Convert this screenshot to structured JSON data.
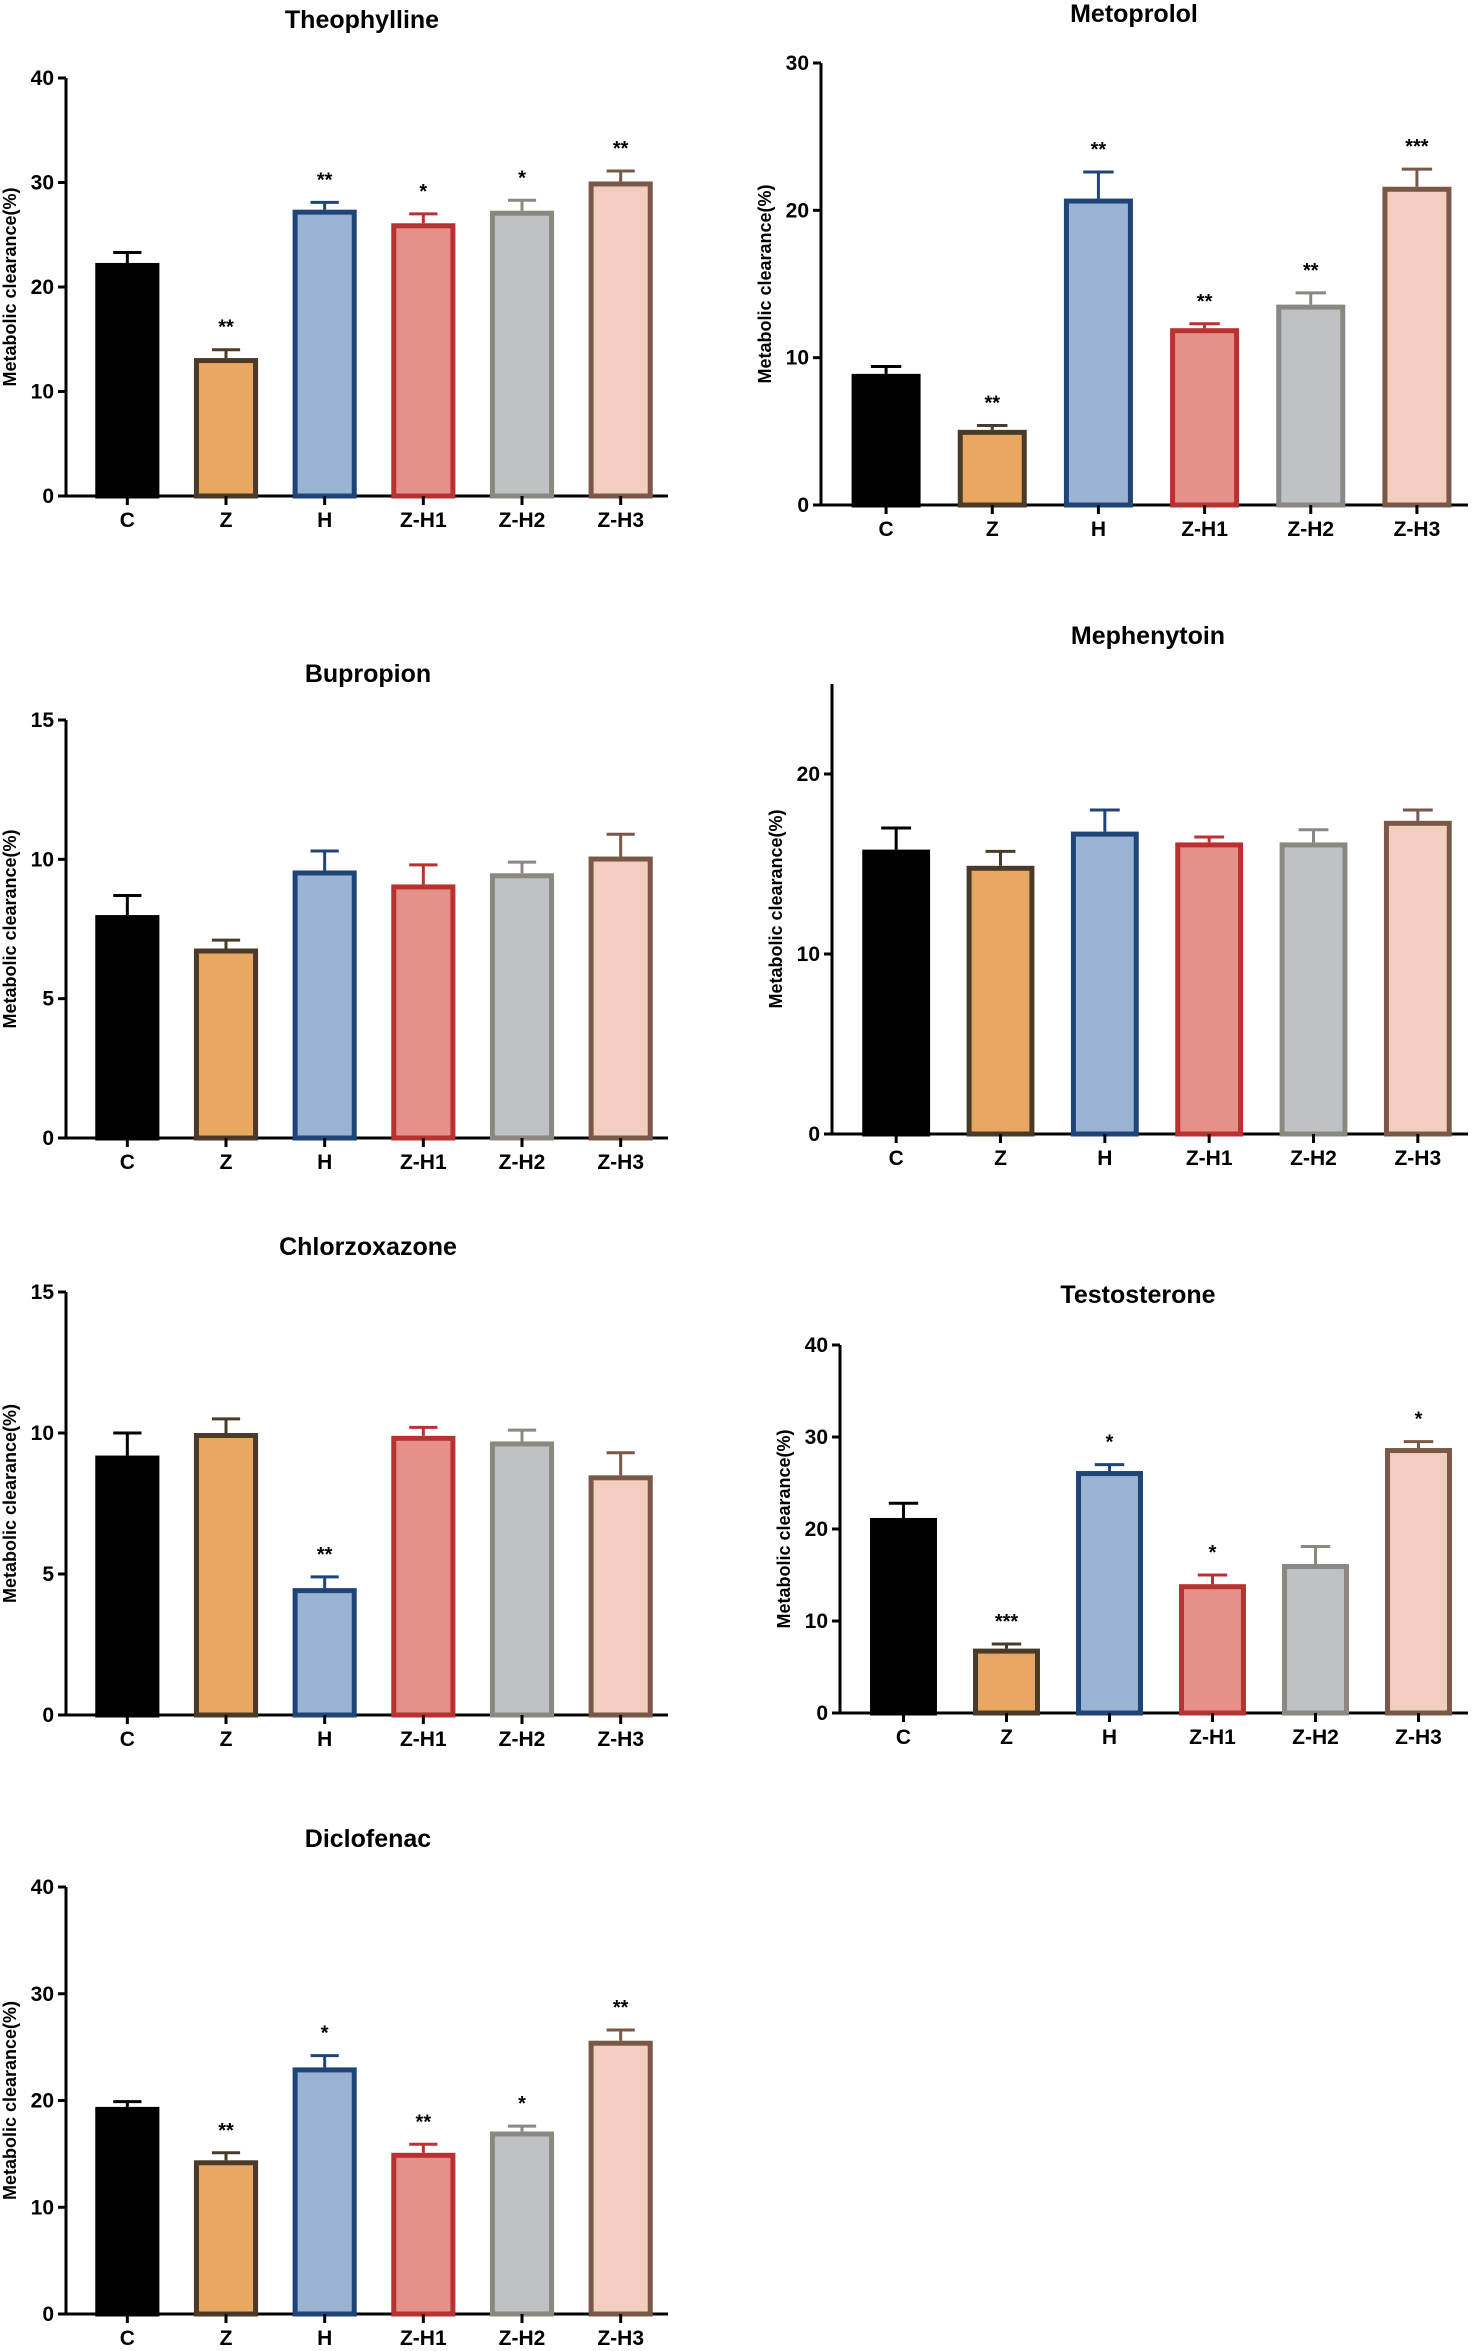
{
  "style": {
    "fills": [
      "#000000",
      "#e8a862",
      "#9bb3d3",
      "#e59089",
      "#bec2c4",
      "#f3cdbf"
    ],
    "strokes": [
      "#000000",
      "#4a3b28",
      "#1f4478",
      "#b83232",
      "#8a8880",
      "#7a5848"
    ]
  },
  "chart_data": [
    {
      "type": "bar",
      "title": "Theophylline",
      "ylabel": "Metabolic clearance(%)",
      "categories": [
        "C",
        "Z",
        "H",
        "Z-H1",
        "Z-H2",
        "Z-H3"
      ],
      "ylim": [
        0,
        40
      ],
      "yticks": [
        0,
        10,
        20,
        30,
        40
      ],
      "values": [
        22.3,
        13.2,
        27.4,
        26.1,
        27.3,
        30.1
      ],
      "errors": [
        1.0,
        0.8,
        0.7,
        0.9,
        1.0,
        1.0
      ],
      "significance": [
        "",
        "**",
        "**",
        "*",
        "*",
        "**"
      ]
    },
    {
      "type": "bar",
      "title": "Metoprolol",
      "ylabel": "Metabolic clearance(%)",
      "categories": [
        "C",
        "Z",
        "H",
        "Z-H1",
        "Z-H2",
        "Z-H3"
      ],
      "ylim": [
        0,
        30
      ],
      "yticks": [
        0,
        10,
        20,
        30
      ],
      "values": [
        8.9,
        5.1,
        20.8,
        12.0,
        13.6,
        21.6
      ],
      "errors": [
        0.5,
        0.3,
        1.8,
        0.3,
        0.8,
        1.2
      ],
      "significance": [
        "",
        "**",
        "**",
        "**",
        "**",
        "***"
      ]
    },
    {
      "type": "bar",
      "title": "Bupropion",
      "ylabel": "Metabolic clearance(%)",
      "categories": [
        "C",
        "Z",
        "H",
        "Z-H1",
        "Z-H2",
        "Z-H3"
      ],
      "ylim": [
        0,
        15
      ],
      "yticks": [
        0,
        5,
        10,
        15
      ],
      "values": [
        8.0,
        6.8,
        9.6,
        9.1,
        9.5,
        10.1
      ],
      "errors": [
        0.7,
        0.3,
        0.7,
        0.7,
        0.4,
        0.8
      ],
      "significance": [
        "",
        "",
        "",
        "",
        "",
        ""
      ]
    },
    {
      "type": "bar",
      "title": "Mephenytoin",
      "ylabel": "Metabolic clearance(%)",
      "categories": [
        "C",
        "Z",
        "H",
        "Z-H1",
        "Z-H2",
        "Z-H3"
      ],
      "ylim": [
        0,
        25
      ],
      "yticks": [
        0,
        10,
        20
      ],
      "values": [
        15.8,
        14.9,
        16.8,
        16.2,
        16.2,
        17.4
      ],
      "errors": [
        1.2,
        0.8,
        1.2,
        0.3,
        0.7,
        0.6
      ],
      "significance": [
        "",
        "",
        "",
        "",
        "",
        ""
      ]
    },
    {
      "type": "bar",
      "title": "Chlorzoxazone",
      "ylabel": "Metabolic clearance(%)",
      "categories": [
        "C",
        "Z",
        "H",
        "Z-H1",
        "Z-H2",
        "Z-H3"
      ],
      "ylim": [
        0,
        15
      ],
      "yticks": [
        0,
        5,
        10,
        15
      ],
      "values": [
        9.2,
        10.0,
        4.5,
        9.9,
        9.7,
        8.5
      ],
      "errors": [
        0.8,
        0.5,
        0.4,
        0.3,
        0.4,
        0.8
      ],
      "significance": [
        "",
        "",
        "**",
        "",
        "",
        ""
      ]
    },
    {
      "type": "bar",
      "title": "Testosterone",
      "ylabel": "Metabolic clearance(%)",
      "categories": [
        "C",
        "Z",
        "H",
        "Z-H1",
        "Z-H2",
        "Z-H3"
      ],
      "ylim": [
        0,
        40
      ],
      "yticks": [
        0,
        10,
        20,
        30,
        40
      ],
      "values": [
        21.2,
        7.0,
        26.3,
        14.0,
        16.2,
        28.8
      ],
      "errors": [
        1.6,
        0.5,
        0.7,
        1.0,
        1.9,
        0.7
      ],
      "significance": [
        "",
        "***",
        "*",
        "*",
        "",
        "*"
      ]
    },
    {
      "type": "bar",
      "title": "Diclofenac",
      "ylabel": "Metabolic clearance(%)",
      "categories": [
        "C",
        "Z",
        "H",
        "Z-H1",
        "Z-H2",
        "Z-H3"
      ],
      "ylim": [
        0,
        40
      ],
      "yticks": [
        0,
        10,
        20,
        30,
        40
      ],
      "values": [
        19.4,
        14.4,
        23.1,
        15.1,
        17.1,
        25.6
      ],
      "errors": [
        0.5,
        0.7,
        1.1,
        0.8,
        0.5,
        1.0
      ],
      "significance": [
        "",
        "**",
        "*",
        "**",
        "*",
        "**"
      ]
    }
  ]
}
